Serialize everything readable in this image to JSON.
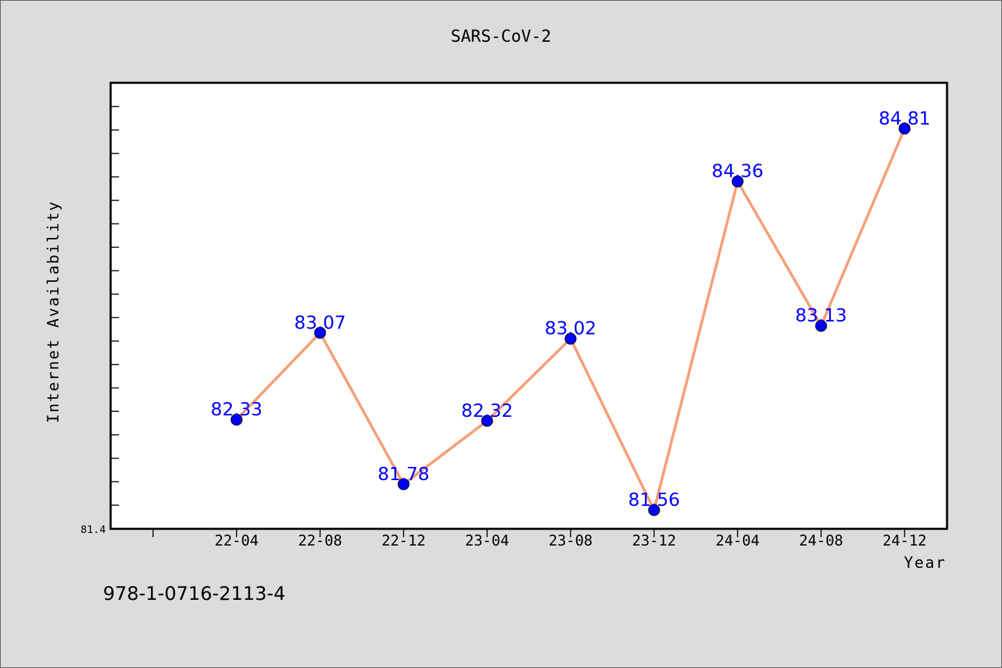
{
  "chart_data": {
    "type": "line",
    "title": "SARS-CoV-2",
    "xlabel": "Year",
    "ylabel": "Internet Availability",
    "categories": [
      "22-04",
      "22-08",
      "22-12",
      "23-04",
      "23-08",
      "23-12",
      "24-04",
      "24-08",
      "24-12"
    ],
    "series": [
      {
        "values": [
          82.33,
          83.07,
          81.78,
          82.32,
          83.02,
          81.56,
          84.36,
          83.13,
          84.81
        ]
      }
    ],
    "data_labels": [
      "82.33",
      "83.07",
      "81.78",
      "82.32",
      "83.02",
      "81.56",
      "84.36",
      "83.13",
      "84.81"
    ],
    "ylim": [
      81.4,
      85.2
    ],
    "y_tick_label": "81.4",
    "grid": false,
    "line_color": "#f4a07a",
    "marker_color": "#0000ff",
    "label_color": "#0000ff"
  },
  "footer": {
    "text": "978-1-0716-2113-4"
  }
}
